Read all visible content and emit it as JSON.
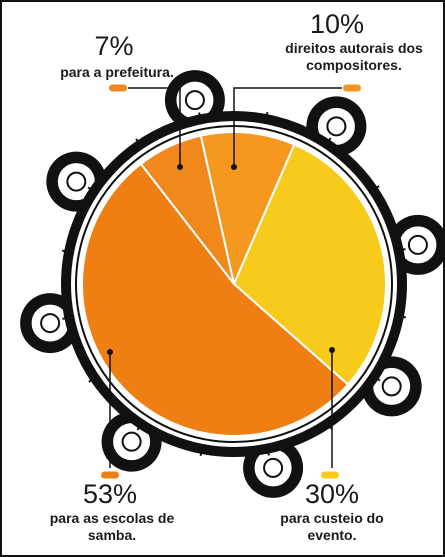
{
  "chart_data": {
    "type": "pie",
    "categories": [
      "para a prefeitura.",
      "direitos autorais dos compositores.",
      "para custeio do evento.",
      "para as escolas de samba."
    ],
    "values": [
      7,
      10,
      30,
      53
    ],
    "value_labels": [
      "7%",
      "10%",
      "30%",
      "53%"
    ],
    "colors": [
      "#f0881c",
      "#f6981f",
      "#f7cb1b",
      "#ef7e13"
    ]
  }
}
